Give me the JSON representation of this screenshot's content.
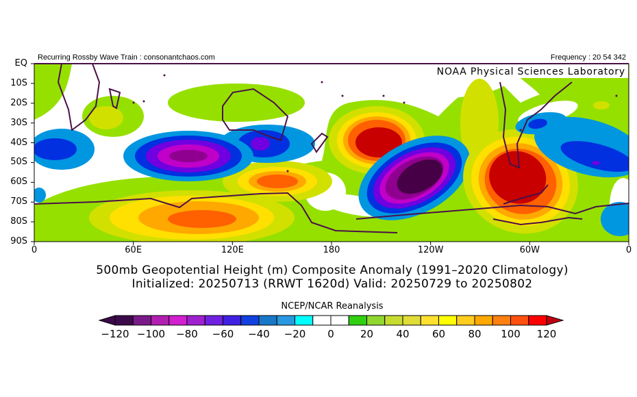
{
  "header": {
    "left_text": "Recurring Rossby Wave Train : consonantchaos.com",
    "right_text": "Frequency : 20 54 342",
    "lab_credit": "NOAA Physical Sciences Laboratory"
  },
  "map": {
    "lat_labels": [
      "EQ",
      "10S",
      "20S",
      "30S",
      "40S",
      "50S",
      "60S",
      "70S",
      "80S",
      "90S"
    ],
    "lon_labels": [
      "0",
      "60E",
      "120E",
      "180",
      "120W",
      "60W",
      "0"
    ],
    "coastline_color": "#4a1048",
    "field": "500mb geopotential height anomaly (m)"
  },
  "titles": {
    "line1": "500mb Geopotential Height (m) Composite Anomaly (1991–2020 Climatology)",
    "line2": "Initialized: 20250713 (RRWT 1620d) Valid: 20250729 to 20250802"
  },
  "colorbar": {
    "label": "NCEP/NCAR Reanalysis",
    "ticks": [
      "−120",
      "−100",
      "−80",
      "−60",
      "−40",
      "−20",
      "0",
      "20",
      "40",
      "60",
      "80",
      "100",
      "120"
    ],
    "low_extend_color": "#3c0a4a",
    "high_extend_color": "#c00010",
    "colors": [
      "#3c0a4a",
      "#7a1a88",
      "#b21fb0",
      "#d21fd0",
      "#a020d0",
      "#7020e0",
      "#4020e0",
      "#1040e0",
      "#1878c8",
      "#2898e0",
      "#00ffff",
      "#ffffff",
      "#ffffff",
      "#30d010",
      "#90d830",
      "#c8dc30",
      "#e0dc38",
      "#ffe030",
      "#ffff00",
      "#ffcc20",
      "#ffa800",
      "#ff8010",
      "#ff5010",
      "#ff0000"
    ]
  }
}
